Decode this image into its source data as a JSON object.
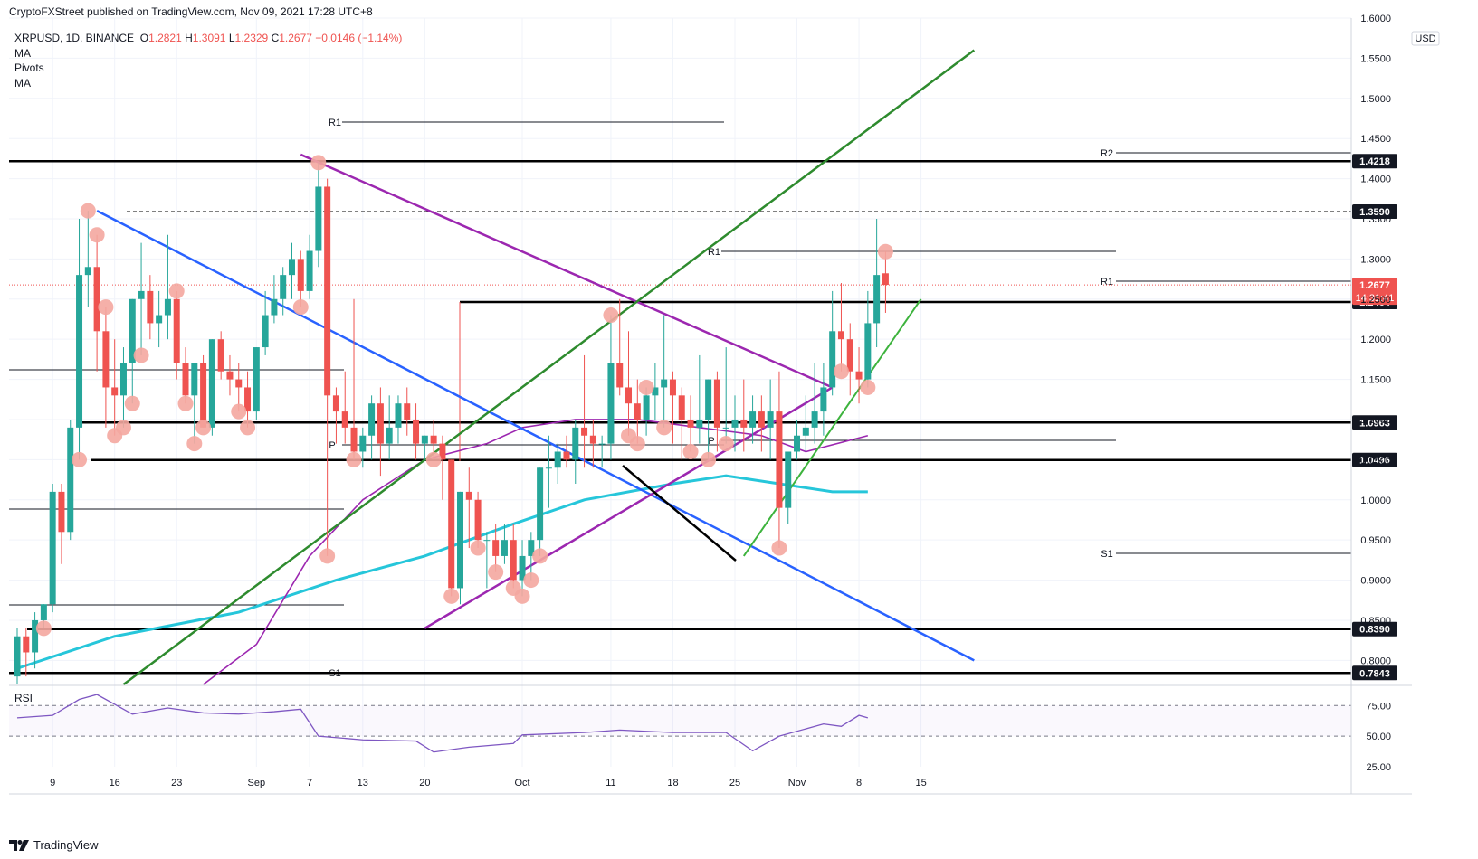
{
  "publisher": "CryptoFXStreet published on TradingView.com, Nov 09, 2021 17:28 UTC+8",
  "legend": {
    "symbol": "XRPUSD, 1D, BINANCE",
    "open_label": "O",
    "open": "1.2821",
    "high_label": "H",
    "high": "1.3091",
    "low_label": "L",
    "low": "1.2329",
    "close_label": "C",
    "close": "1.2677",
    "change": "−0.0146 (−1.14%)",
    "indicators": [
      "MA",
      "Pivots",
      "MA"
    ]
  },
  "branding": "TradingView",
  "colors": {
    "up": "#26a69a",
    "down": "#ef5350",
    "marker": "#f4a7a0",
    "blue_trend": "#2962ff",
    "purple_trend": "#9c27b0",
    "green_trend": "#2e8b2e",
    "ma_fast": "#9c27b0",
    "ma_slow": "#26c6da",
    "rsi": "#7e57c2",
    "level": "#000000"
  },
  "chart_data": {
    "type": "candlestick",
    "symbol": "XRPUSD",
    "timeframe": "1D",
    "exchange": "BINANCE",
    "currency": "USD",
    "ylim": [
      0.77,
      1.6
    ],
    "y_ticks": [
      0.8,
      0.85,
      0.9,
      0.95,
      1.0,
      1.05,
      1.1,
      1.15,
      1.2,
      1.25,
      1.3,
      1.35,
      1.4,
      1.45,
      1.5,
      1.55,
      1.6
    ],
    "y_tick_labels": [
      "0.8000",
      "0.8500",
      "0.9000",
      "0.9500",
      "1.0000",
      "1.0500",
      "1.1000",
      "1.1500",
      "1.2000",
      "1.2500",
      "1.3000",
      "1.3500",
      "1.4000",
      "1.4500",
      "1.5000",
      "1.5500",
      "1.6000"
    ],
    "x_start": "2021-08-05",
    "x_ticks": [
      {
        "label": "9",
        "date": "2021-08-09"
      },
      {
        "label": "16",
        "date": "2021-08-16"
      },
      {
        "label": "23",
        "date": "2021-08-23"
      },
      {
        "label": "Sep",
        "date": "2021-09-01"
      },
      {
        "label": "7",
        "date": "2021-09-07"
      },
      {
        "label": "13",
        "date": "2021-09-13"
      },
      {
        "label": "20",
        "date": "2021-09-20"
      },
      {
        "label": "Oct",
        "date": "2021-10-01"
      },
      {
        "label": "11",
        "date": "2021-10-11"
      },
      {
        "label": "18",
        "date": "2021-10-18"
      },
      {
        "label": "25",
        "date": "2021-10-25"
      },
      {
        "label": "Nov",
        "date": "2021-11-01"
      },
      {
        "label": "8",
        "date": "2021-11-08"
      },
      {
        "label": "15",
        "date": "2021-11-15"
      }
    ],
    "ohlc": [
      [
        0.78,
        0.84,
        0.77,
        0.83
      ],
      [
        0.83,
        0.84,
        0.78,
        0.81
      ],
      [
        0.81,
        0.86,
        0.79,
        0.85
      ],
      [
        0.85,
        0.87,
        0.84,
        0.87
      ],
      [
        0.87,
        1.02,
        0.86,
        1.01
      ],
      [
        1.01,
        1.02,
        0.92,
        0.96
      ],
      [
        0.96,
        1.1,
        0.95,
        1.09
      ],
      [
        1.09,
        1.35,
        1.05,
        1.28
      ],
      [
        1.28,
        1.36,
        1.24,
        1.29
      ],
      [
        1.29,
        1.33,
        1.16,
        1.21
      ],
      [
        1.21,
        1.24,
        1.09,
        1.14
      ],
      [
        1.14,
        1.2,
        1.08,
        1.13
      ],
      [
        1.13,
        1.19,
        1.09,
        1.17
      ],
      [
        1.17,
        1.25,
        1.12,
        1.25
      ],
      [
        1.25,
        1.32,
        1.18,
        1.26
      ],
      [
        1.26,
        1.28,
        1.2,
        1.22
      ],
      [
        1.22,
        1.26,
        1.19,
        1.23
      ],
      [
        1.23,
        1.33,
        1.2,
        1.25
      ],
      [
        1.25,
        1.26,
        1.15,
        1.17
      ],
      [
        1.17,
        1.19,
        1.12,
        1.13
      ],
      [
        1.13,
        1.17,
        1.07,
        1.17
      ],
      [
        1.17,
        1.18,
        1.09,
        1.09
      ],
      [
        1.09,
        1.2,
        1.08,
        1.2
      ],
      [
        1.2,
        1.21,
        1.15,
        1.16
      ],
      [
        1.16,
        1.18,
        1.13,
        1.15
      ],
      [
        1.15,
        1.17,
        1.11,
        1.14
      ],
      [
        1.14,
        1.16,
        1.09,
        1.11
      ],
      [
        1.11,
        1.19,
        1.1,
        1.19
      ],
      [
        1.19,
        1.26,
        1.18,
        1.23
      ],
      [
        1.23,
        1.28,
        1.22,
        1.25
      ],
      [
        1.25,
        1.29,
        1.23,
        1.28
      ],
      [
        1.28,
        1.32,
        1.25,
        1.3
      ],
      [
        1.3,
        1.31,
        1.24,
        1.26
      ],
      [
        1.26,
        1.33,
        1.25,
        1.31
      ],
      [
        1.31,
        1.42,
        1.29,
        1.39
      ],
      [
        1.39,
        1.4,
        0.93,
        1.13
      ],
      [
        1.13,
        1.14,
        1.07,
        1.11
      ],
      [
        1.11,
        1.16,
        1.07,
        1.09
      ],
      [
        1.09,
        1.25,
        1.05,
        1.06
      ],
      [
        1.06,
        1.09,
        1.04,
        1.08
      ],
      [
        1.08,
        1.13,
        1.05,
        1.12
      ],
      [
        1.12,
        1.14,
        1.03,
        1.07
      ],
      [
        1.07,
        1.13,
        1.05,
        1.09
      ],
      [
        1.09,
        1.13,
        1.07,
        1.12
      ],
      [
        1.12,
        1.14,
        1.08,
        1.1
      ],
      [
        1.1,
        1.12,
        1.05,
        1.07
      ],
      [
        1.07,
        1.08,
        1.05,
        1.08
      ],
      [
        1.08,
        1.1,
        1.05,
        1.07
      ],
      [
        1.07,
        1.08,
        1.0,
        1.05
      ],
      [
        1.05,
        1.05,
        0.88,
        0.89
      ],
      [
        0.89,
        1.01,
        0.87,
        1.01
      ],
      [
        1.01,
        1.04,
        0.94,
        1.0
      ],
      [
        1.0,
        1.01,
        0.94,
        0.95
      ],
      [
        0.95,
        0.96,
        0.89,
        0.95
      ],
      [
        0.95,
        0.97,
        0.91,
        0.93
      ],
      [
        0.93,
        0.97,
        0.92,
        0.95
      ],
      [
        0.95,
        0.97,
        0.89,
        0.9
      ],
      [
        0.9,
        0.95,
        0.88,
        0.93
      ],
      [
        0.93,
        0.96,
        0.9,
        0.95
      ],
      [
        0.95,
        1.04,
        0.93,
        1.04
      ],
      [
        1.04,
        1.08,
        0.99,
        1.04
      ],
      [
        1.04,
        1.07,
        1.02,
        1.06
      ],
      [
        1.06,
        1.08,
        1.04,
        1.05
      ],
      [
        1.05,
        1.1,
        1.02,
        1.09
      ],
      [
        1.09,
        1.18,
        1.04,
        1.08
      ],
      [
        1.08,
        1.1,
        1.04,
        1.07
      ],
      [
        1.07,
        1.08,
        1.04,
        1.07
      ],
      [
        1.07,
        1.23,
        1.05,
        1.17
      ],
      [
        1.17,
        1.25,
        1.13,
        1.14
      ],
      [
        1.14,
        1.21,
        1.08,
        1.12
      ],
      [
        1.12,
        1.15,
        1.07,
        1.1
      ],
      [
        1.1,
        1.14,
        1.08,
        1.13
      ],
      [
        1.13,
        1.17,
        1.1,
        1.14
      ],
      [
        1.14,
        1.23,
        1.09,
        1.15
      ],
      [
        1.15,
        1.16,
        1.07,
        1.13
      ],
      [
        1.13,
        1.14,
        1.05,
        1.1
      ],
      [
        1.1,
        1.13,
        1.06,
        1.09
      ],
      [
        1.09,
        1.18,
        1.07,
        1.1
      ],
      [
        1.1,
        1.15,
        1.05,
        1.15
      ],
      [
        1.15,
        1.16,
        1.06,
        1.09
      ],
      [
        1.09,
        1.19,
        1.07,
        1.09
      ],
      [
        1.09,
        1.13,
        1.06,
        1.1
      ],
      [
        1.1,
        1.15,
        1.06,
        1.09
      ],
      [
        1.09,
        1.13,
        1.07,
        1.11
      ],
      [
        1.11,
        1.13,
        1.06,
        1.09
      ],
      [
        1.09,
        1.15,
        1.05,
        1.11
      ],
      [
        1.11,
        1.16,
        0.94,
        0.99
      ],
      [
        0.99,
        1.06,
        0.97,
        1.06
      ],
      [
        1.06,
        1.1,
        1.05,
        1.08
      ],
      [
        1.08,
        1.13,
        1.06,
        1.09
      ],
      [
        1.09,
        1.17,
        1.07,
        1.11
      ],
      [
        1.11,
        1.17,
        1.08,
        1.14
      ],
      [
        1.14,
        1.26,
        1.13,
        1.21
      ],
      [
        1.21,
        1.27,
        1.16,
        1.2
      ],
      [
        1.2,
        1.22,
        1.13,
        1.16
      ],
      [
        1.16,
        1.19,
        1.12,
        1.15
      ],
      [
        1.15,
        1.26,
        1.14,
        1.22
      ],
      [
        1.22,
        1.35,
        1.19,
        1.28
      ],
      [
        1.2821,
        1.3091,
        1.2329,
        1.2677
      ]
    ],
    "ma_fast_points": [
      [
        "2021-08-26",
        0.77
      ],
      [
        "2021-09-01",
        0.82
      ],
      [
        "2021-09-07",
        0.93
      ],
      [
        "2021-09-13",
        1.0
      ],
      [
        "2021-09-20",
        1.05
      ],
      [
        "2021-09-27",
        1.07
      ],
      [
        "2021-10-01",
        1.09
      ],
      [
        "2021-10-07",
        1.1
      ],
      [
        "2021-10-14",
        1.1
      ],
      [
        "2021-10-21",
        1.09
      ],
      [
        "2021-10-28",
        1.08
      ],
      [
        "2021-11-02",
        1.06
      ],
      [
        "2021-11-09",
        1.08
      ]
    ],
    "ma_slow_points": [
      [
        "2021-08-05",
        0.79
      ],
      [
        "2021-08-16",
        0.83
      ],
      [
        "2021-08-30",
        0.86
      ],
      [
        "2021-09-10",
        0.9
      ],
      [
        "2021-09-20",
        0.93
      ],
      [
        "2021-09-30",
        0.97
      ],
      [
        "2021-10-08",
        1.0
      ],
      [
        "2021-10-18",
        1.02
      ],
      [
        "2021-10-24",
        1.03
      ],
      [
        "2021-10-30",
        1.02
      ],
      [
        "2021-11-05",
        1.01
      ],
      [
        "2021-11-09",
        1.01
      ]
    ],
    "levels": [
      {
        "name": "resistance",
        "value": 1.4218,
        "label": "1.4218"
      },
      {
        "name": "high-dashed",
        "value": 1.359,
        "label": "1.3590"
      },
      {
        "name": "support",
        "value": 1.2464,
        "label": "1.2464"
      },
      {
        "name": "support",
        "value": 1.0963,
        "label": "1.0963"
      },
      {
        "name": "support",
        "value": 1.0496,
        "label": "1.0496"
      },
      {
        "name": "support",
        "value": 0.839,
        "label": "0.8390"
      },
      {
        "name": "support",
        "value": 0.7843,
        "label": "0.7843"
      }
    ],
    "current_price": {
      "value": "1.2677",
      "countdown": "14:31:41"
    },
    "pivot_labels": [
      "R1",
      "P",
      "S1",
      "R1",
      "P",
      "R2",
      "R1",
      "S1"
    ],
    "trendlines": [
      {
        "name": "blue-descending",
        "from": [
          "2021-08-14",
          1.36
        ],
        "to": [
          "2021-11-21",
          0.8
        ]
      },
      {
        "name": "purple-descending",
        "from": [
          "2021-09-06",
          1.43
        ],
        "to": [
          "2021-11-05",
          1.14
        ]
      },
      {
        "name": "purple-ascending",
        "from": [
          "2021-09-20",
          0.84
        ],
        "to": [
          "2021-11-05",
          1.14
        ]
      },
      {
        "name": "green-long-ascending",
        "from": [
          "2021-08-17",
          0.77
        ],
        "to": [
          "2021-11-21",
          1.56
        ]
      },
      {
        "name": "green-short-ascending",
        "from": [
          "2021-10-26",
          0.93
        ],
        "to": [
          "2021-11-15",
          1.25
        ]
      }
    ],
    "rsi": {
      "label": "RSI",
      "ylim": [
        25,
        90
      ],
      "y_tick_labels": [
        "75.00",
        "50.00",
        "25.00"
      ],
      "points": [
        [
          "2021-08-05",
          65
        ],
        [
          "2021-08-09",
          67
        ],
        [
          "2021-08-12",
          80
        ],
        [
          "2021-08-14",
          84
        ],
        [
          "2021-08-18",
          68
        ],
        [
          "2021-08-22",
          73
        ],
        [
          "2021-08-26",
          69
        ],
        [
          "2021-08-30",
          68
        ],
        [
          "2021-09-03",
          70
        ],
        [
          "2021-09-06",
          72
        ],
        [
          "2021-09-08",
          50
        ],
        [
          "2021-09-13",
          47
        ],
        [
          "2021-09-19",
          46
        ],
        [
          "2021-09-21",
          37
        ],
        [
          "2021-09-25",
          41
        ],
        [
          "2021-09-30",
          44
        ],
        [
          "2021-10-01",
          51
        ],
        [
          "2021-10-08",
          53
        ],
        [
          "2021-10-12",
          55
        ],
        [
          "2021-10-18",
          53
        ],
        [
          "2021-10-24",
          53
        ],
        [
          "2021-10-27",
          38
        ],
        [
          "2021-10-30",
          50
        ],
        [
          "2021-11-04",
          60
        ],
        [
          "2021-11-06",
          58
        ],
        [
          "2021-11-08",
          67
        ],
        [
          "2021-11-09",
          65
        ]
      ]
    }
  }
}
